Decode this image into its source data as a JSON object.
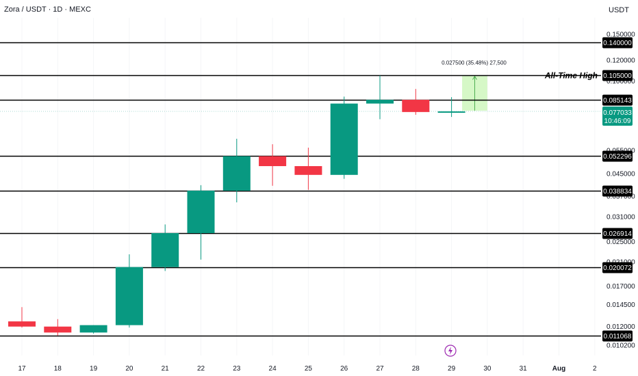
{
  "header": {
    "title": "Zora / USDT · 1D · MEXC",
    "currency": "USDT"
  },
  "colors": {
    "up": "#089981",
    "down": "#f23645",
    "level": "#000000",
    "target_zone": "#c8f5b4",
    "last_price": "#089981"
  },
  "chart_data": {
    "type": "candlestick",
    "scale": "log",
    "ylim": [
      0.0098,
      0.163
    ],
    "x_ticks": [
      "17",
      "18",
      "19",
      "20",
      "21",
      "22",
      "23",
      "24",
      "25",
      "26",
      "27",
      "28",
      "29",
      "30",
      "31",
      "Aug",
      "2"
    ],
    "y_ticks": [
      "0.150000",
      "0.120000",
      "0.100000",
      "0.055000",
      "0.045000",
      "0.037000",
      "0.031000",
      "0.025000",
      "0.021000",
      "0.017000",
      "0.014500",
      "0.012000",
      "0.010200"
    ],
    "candles": [
      {
        "date": "17",
        "open": 0.01255,
        "high": 0.0142,
        "low": 0.0119,
        "close": 0.012
      },
      {
        "date": "18",
        "open": 0.012,
        "high": 0.0128,
        "low": 0.0111,
        "close": 0.0114
      },
      {
        "date": "19",
        "open": 0.0114,
        "high": 0.01215,
        "low": 0.0113,
        "close": 0.01215
      },
      {
        "date": "20",
        "open": 0.01215,
        "high": 0.0224,
        "low": 0.0119,
        "close": 0.02007
      },
      {
        "date": "21",
        "open": 0.02007,
        "high": 0.029,
        "low": 0.0194,
        "close": 0.02691
      },
      {
        "date": "22",
        "open": 0.02691,
        "high": 0.0407,
        "low": 0.0214,
        "close": 0.03883
      },
      {
        "date": "23",
        "open": 0.03883,
        "high": 0.0608,
        "low": 0.0351,
        "close": 0.0523
      },
      {
        "date": "24",
        "open": 0.0523,
        "high": 0.058,
        "low": 0.0405,
        "close": 0.048
      },
      {
        "date": "25",
        "open": 0.048,
        "high": 0.0563,
        "low": 0.0391,
        "close": 0.0445
      },
      {
        "date": "26",
        "open": 0.0445,
        "high": 0.0875,
        "low": 0.043,
        "close": 0.0824
      },
      {
        "date": "27",
        "open": 0.0824,
        "high": 0.105,
        "low": 0.072,
        "close": 0.08514
      },
      {
        "date": "28",
        "open": 0.08514,
        "high": 0.0935,
        "low": 0.0748,
        "close": 0.0766
      },
      {
        "date": "29",
        "open": 0.0766,
        "high": 0.0871,
        "low": 0.0734,
        "close": 0.07703
      }
    ],
    "levels": [
      {
        "value": 0.14,
        "label": "0.140000"
      },
      {
        "value": 0.105,
        "label": "0.105000"
      },
      {
        "value": 0.085143,
        "label": "0.085143"
      },
      {
        "value": 0.052296,
        "label": "0.052296"
      },
      {
        "value": 0.038834,
        "label": "0.038834"
      },
      {
        "value": 0.026914,
        "label": "0.026914"
      },
      {
        "value": 0.020072,
        "label": "0.020072"
      },
      {
        "value": 0.011068,
        "label": "0.011068"
      }
    ],
    "last_price": {
      "value": 0.077033,
      "label": "0.077033",
      "countdown": "10:46:09"
    },
    "target_zone": {
      "from_price": 0.0775,
      "to_price": 0.105,
      "from_date_index": 12.2,
      "to_date_index": 13.0,
      "label": "0.027500 (35.48%) 27,500"
    },
    "annotation": {
      "text": "All-Time High",
      "price": 0.105
    }
  }
}
